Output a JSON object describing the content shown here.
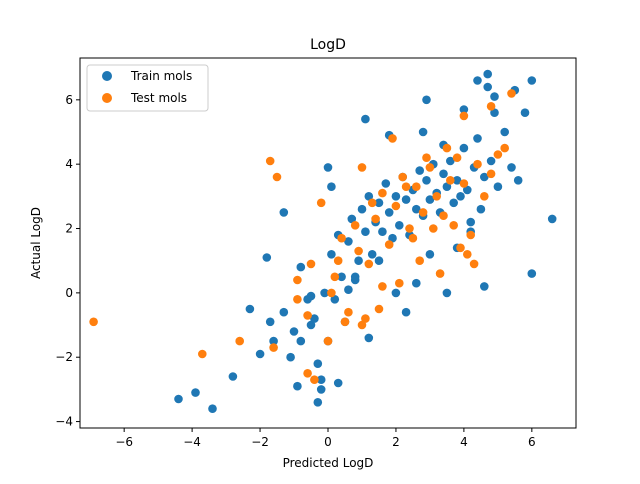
{
  "chart_data": {
    "type": "scatter",
    "title": "LogD",
    "xlabel": "Predicted LogD",
    "ylabel": "Actual LogD",
    "xlim": [
      -7.3,
      7.3
    ],
    "ylim": [
      -4.2,
      7.3
    ],
    "xticks": [
      -6,
      -4,
      -2,
      0,
      2,
      4,
      6
    ],
    "yticks": [
      -4,
      -2,
      0,
      2,
      4,
      6
    ],
    "xtick_labels": [
      "−6",
      "−4",
      "−2",
      "0",
      "2",
      "4",
      "6"
    ],
    "ytick_labels": [
      "−4",
      "−2",
      "0",
      "2",
      "4",
      "6"
    ],
    "grid": false,
    "legend_position": "top-left",
    "series": [
      {
        "name": "Train mols",
        "color": "#1f77b4",
        "x": [
          -4.4,
          -3.9,
          -3.4,
          -2.8,
          -2.3,
          -2.0,
          -1.7,
          -1.6,
          -1.3,
          -1.1,
          -1.0,
          -0.9,
          -0.8,
          -0.6,
          -0.5,
          -0.4,
          -0.3,
          -0.2,
          -0.1,
          0.0,
          0.1,
          0.2,
          0.3,
          0.4,
          0.5,
          0.6,
          0.7,
          0.8,
          0.9,
          1.0,
          1.1,
          1.2,
          1.3,
          1.4,
          1.5,
          1.6,
          1.7,
          1.8,
          1.9,
          2.0,
          2.1,
          2.2,
          2.3,
          2.4,
          2.5,
          2.6,
          2.7,
          2.8,
          2.9,
          3.0,
          3.1,
          3.2,
          3.3,
          3.4,
          3.5,
          3.6,
          3.7,
          3.8,
          3.9,
          4.0,
          4.1,
          4.2,
          4.3,
          4.4,
          4.5,
          4.6,
          4.7,
          4.8,
          4.9,
          5.0,
          5.2,
          5.4,
          5.6,
          5.8,
          6.0,
          6.6,
          6.0,
          -1.8,
          -1.3,
          -0.8,
          0.0,
          0.1,
          -0.5,
          0.6,
          1.2,
          2.3,
          3.5,
          4.6,
          4.7,
          4.4,
          4.9,
          5.5,
          2.9,
          1.1,
          -0.2,
          -0.3,
          0.3,
          1.8,
          2.8,
          3.4,
          4.0,
          1.5,
          0.8,
          2.0,
          2.6,
          3.0,
          3.8,
          4.2
        ],
        "y": [
          -3.3,
          -3.1,
          -3.6,
          -2.6,
          -0.5,
          -1.9,
          -0.9,
          -1.5,
          -0.6,
          -2.0,
          -1.2,
          -2.9,
          0.8,
          -0.2,
          -1.0,
          -0.8,
          -2.2,
          -2.7,
          0.0,
          -1.5,
          1.2,
          -0.2,
          1.8,
          0.5,
          -0.9,
          1.6,
          2.3,
          0.4,
          1.0,
          2.6,
          1.9,
          3.0,
          1.2,
          2.2,
          2.8,
          1.9,
          3.4,
          2.5,
          1.7,
          3.0,
          2.1,
          3.6,
          2.9,
          1.8,
          3.2,
          2.6,
          3.8,
          2.4,
          3.5,
          2.9,
          4.0,
          3.1,
          2.5,
          3.7,
          3.3,
          4.1,
          2.8,
          3.5,
          3.0,
          4.5,
          3.2,
          2.2,
          3.9,
          4.8,
          2.6,
          3.6,
          6.8,
          4.1,
          5.6,
          3.3,
          5.0,
          3.9,
          3.5,
          5.6,
          6.6,
          2.3,
          0.6,
          1.1,
          2.5,
          -1.5,
          3.9,
          3.3,
          -0.1,
          0.1,
          -1.4,
          -0.6,
          0.0,
          0.2,
          6.4,
          6.6,
          6.1,
          6.3,
          6.0,
          5.4,
          -3.0,
          -3.4,
          -2.8,
          4.9,
          5.0,
          4.6,
          5.7,
          1.0,
          0.5,
          0.0,
          0.3,
          1.2,
          1.4,
          1.9
        ]
      },
      {
        "name": "Test mols",
        "color": "#ff7f0e",
        "x": [
          -6.9,
          -3.7,
          -2.6,
          -1.7,
          -1.5,
          -1.6,
          -0.9,
          -0.6,
          -0.5,
          -0.2,
          0.0,
          0.2,
          0.4,
          0.6,
          0.8,
          1.0,
          1.2,
          1.4,
          1.6,
          1.8,
          2.0,
          2.2,
          2.4,
          2.6,
          2.8,
          3.0,
          3.2,
          3.4,
          3.6,
          3.8,
          4.0,
          4.2,
          4.4,
          4.6,
          4.8,
          5.0,
          5.2,
          5.4,
          -0.9,
          -0.6,
          0.1,
          0.5,
          1.1,
          1.5,
          2.1,
          2.7,
          3.3,
          3.9,
          4.1,
          4.3,
          4.8,
          4.0,
          0.9,
          1.3,
          1.9,
          2.3,
          2.9,
          3.1,
          3.5,
          1.6,
          1.0,
          0.3,
          -0.4,
          2.5,
          3.7
        ],
        "y": [
          -0.9,
          -1.9,
          -1.5,
          4.1,
          3.6,
          -1.7,
          -0.2,
          -2.5,
          0.9,
          2.8,
          -1.5,
          0.5,
          1.7,
          -0.6,
          2.1,
          3.9,
          0.9,
          2.3,
          3.1,
          1.5,
          2.7,
          3.6,
          2.0,
          3.3,
          2.5,
          3.9,
          3.0,
          2.4,
          3.5,
          4.2,
          3.4,
          1.8,
          4.0,
          3.0,
          5.8,
          4.3,
          4.5,
          6.2,
          0.4,
          -0.7,
          0.0,
          -0.9,
          -0.8,
          -0.5,
          0.3,
          1.0,
          0.6,
          1.4,
          1.2,
          0.9,
          3.7,
          5.5,
          1.3,
          2.8,
          4.8,
          3.3,
          4.2,
          2.0,
          4.5,
          0.2,
          -1.0,
          1.0,
          -2.7,
          1.7,
          2.1
        ]
      }
    ]
  }
}
